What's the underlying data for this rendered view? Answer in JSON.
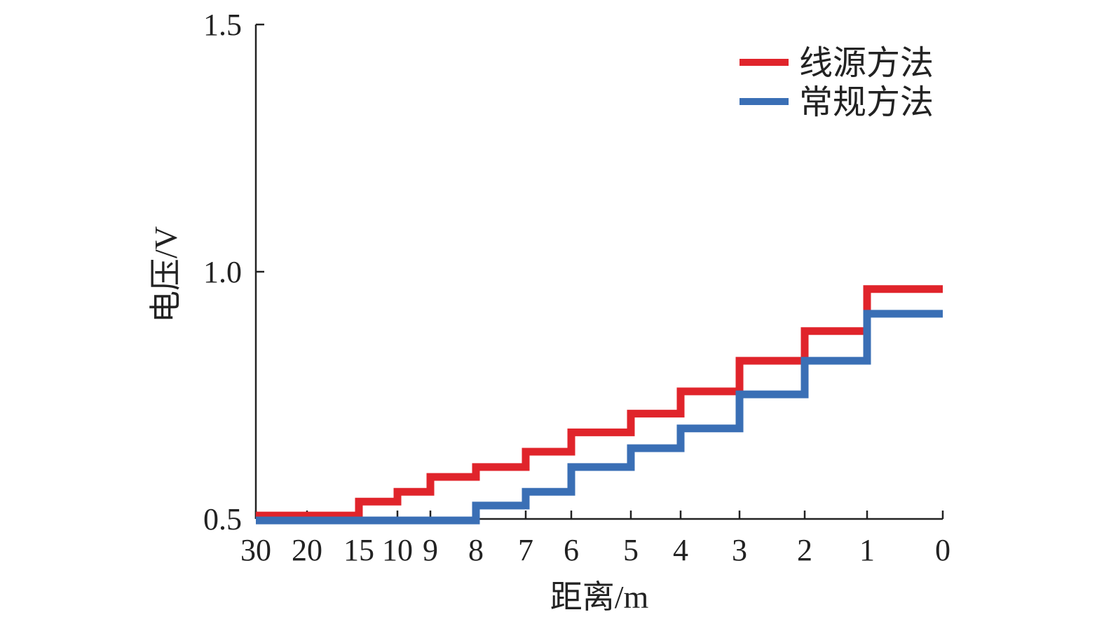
{
  "chart_data": {
    "type": "line",
    "title": "",
    "xlabel": "距离/m",
    "ylabel": "电压/V",
    "ylim": [
      0.5,
      1.5
    ],
    "yticks": [
      "0.5",
      "1.0",
      "1.5"
    ],
    "x_categories": [
      "30",
      "20",
      "15",
      "10",
      "9",
      "8",
      "7",
      "6",
      "5",
      "4",
      "3",
      "2",
      "1",
      "0"
    ],
    "grid": false,
    "legend_position": "top-right",
    "series": [
      {
        "name": "线源方法",
        "color": "#e0242b",
        "values": [
          0.507,
          0.507,
          0.535,
          0.555,
          0.585,
          0.605,
          0.636,
          0.675,
          0.713,
          0.758,
          0.82,
          0.88,
          0.965,
          0.965
        ]
      },
      {
        "name": "常规方法",
        "color": "#3a6fb5",
        "values": [
          0.497,
          0.497,
          0.497,
          0.497,
          0.497,
          0.527,
          0.555,
          0.605,
          0.643,
          0.683,
          0.752,
          0.82,
          0.915,
          0.915
        ]
      }
    ]
  }
}
